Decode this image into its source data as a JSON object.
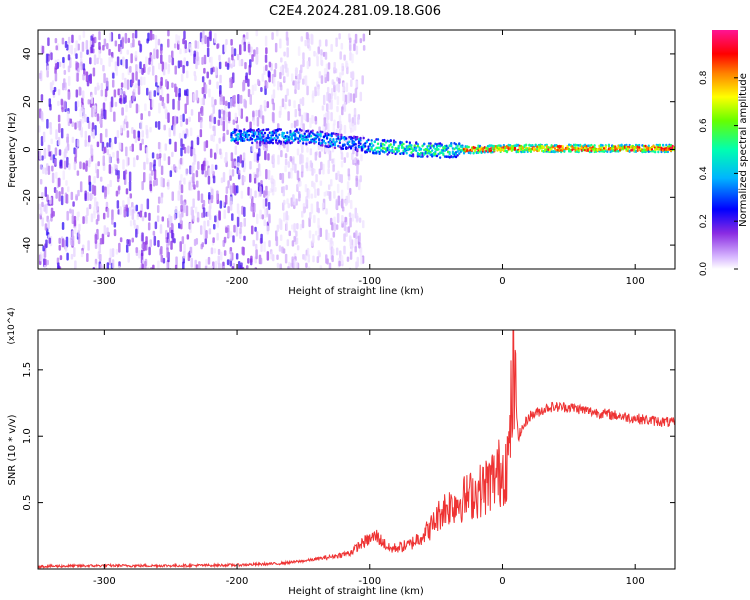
{
  "figure": {
    "title": "C2E4.2024.281.09.18.G06"
  },
  "chart_data": [
    {
      "type": "heatmap",
      "xlabel": "Height of straight line (km)",
      "ylabel": "Frequency (Hz)",
      "xlim": [
        -350,
        130
      ],
      "ylim": [
        -50,
        50
      ],
      "xticks": [
        -300,
        -200,
        -100,
        0,
        100
      ],
      "yticks": [
        -40,
        -20,
        0,
        20,
        40
      ],
      "colorbar": {
        "label": "Normalized spectral amplitude",
        "range": [
          0,
          1
        ],
        "ticks": [
          "0.0",
          "0.2",
          "0.4",
          "0.6",
          "0.8"
        ],
        "colormap": "rainbow (white-purple-blue-cyan-green-yellow-red-magenta)",
        "colors": [
          "#ffffff",
          "#8a2be2",
          "#0000ff",
          "#00c8ff",
          "#00ff66",
          "#ffff00",
          "#ff0000",
          "#ff1493"
        ]
      },
      "ridge": [
        {
          "x": -200,
          "freq": 6
        },
        {
          "x": -150,
          "freq": 6
        },
        {
          "x": -100,
          "freq": 2
        },
        {
          "x": -50,
          "freq": 0
        },
        {
          "x": 0,
          "freq": 1
        },
        {
          "x": 50,
          "freq": 1
        },
        {
          "x": 100,
          "freq": 1
        },
        {
          "x": 130,
          "freq": 1
        }
      ],
      "noise_region_x": [
        -350,
        -130
      ]
    },
    {
      "type": "line",
      "xlabel": "Height of straight line (km)",
      "ylabel": "SNR (10 * v/v)",
      "y_multiplier": "(x10^4)",
      "xlim": [
        -350,
        130
      ],
      "ylim": [
        0,
        1.8
      ],
      "xticks": [
        -300,
        -200,
        -100,
        0,
        100
      ],
      "yticks": [
        "0.5",
        "1.0",
        "1.5"
      ],
      "color": "#ee3333",
      "series": [
        {
          "x": [
            -350,
            -300,
            -250,
            -200,
            -170,
            -150,
            -130,
            -115,
            -105,
            -95,
            -85,
            -70,
            -55,
            -45,
            -35,
            -25,
            -15,
            -5,
            0,
            5,
            8,
            12,
            20,
            35,
            50,
            70,
            90,
            110,
            130
          ],
          "values": [
            0.02,
            0.025,
            0.025,
            0.03,
            0.04,
            0.06,
            0.09,
            0.12,
            0.2,
            0.25,
            0.15,
            0.18,
            0.3,
            0.45,
            0.5,
            0.55,
            0.6,
            0.7,
            0.75,
            0.85,
            1.5,
            1.0,
            1.15,
            1.22,
            1.22,
            1.18,
            1.15,
            1.12,
            1.1
          ]
        }
      ]
    }
  ]
}
